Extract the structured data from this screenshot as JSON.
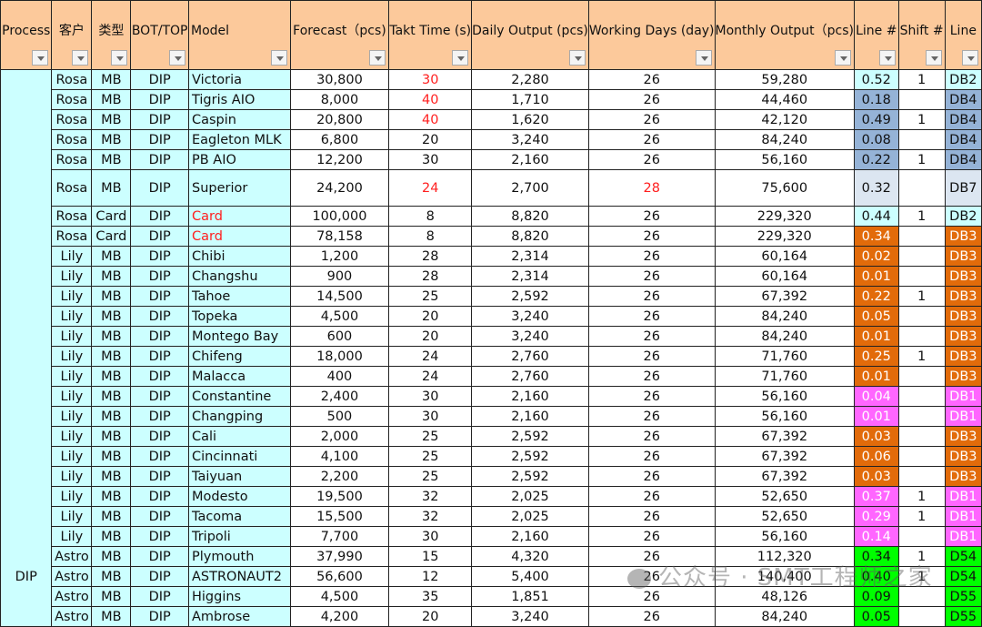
{
  "colors": {
    "header": "#fcc99b",
    "cyan": "#ccffff",
    "blue": "#95b3d7",
    "gray": "#dce6f1",
    "orange": "#e26b0a",
    "pink": "#ff66ff",
    "green": "#00ff00",
    "red_text": "#ff2020"
  },
  "headers": [
    "Process",
    "客户",
    "类型",
    "BOT/TOP",
    "Model",
    "Forecast（pcs)",
    "Takt Time (s)",
    "Daily Output (pcs)",
    "Working Days (day)",
    "Monthly Output（pcs)",
    "Line #",
    "Shift #",
    "Line"
  ],
  "process": "DIP",
  "rows": [
    {
      "customer": "Rosa",
      "type": "MB",
      "bt": "DIP",
      "model": "Victoria",
      "forecast": "30,800",
      "takt": "30",
      "daily": "2,280",
      "days": "26",
      "monthly": "59,280",
      "line_no": "0.52",
      "shift": "1",
      "line": "DB2",
      "color": "cyan",
      "red": [
        "takt"
      ]
    },
    {
      "customer": "Rosa",
      "type": "MB",
      "bt": "DIP",
      "model": "Tigris AIO",
      "forecast": "8,000",
      "takt": "40",
      "daily": "1,710",
      "days": "26",
      "monthly": "44,460",
      "line_no": "0.18",
      "shift": "",
      "line": "DB4",
      "color": "blue",
      "red": [
        "takt"
      ]
    },
    {
      "customer": "Rosa",
      "type": "MB",
      "bt": "DIP",
      "model": "Caspin",
      "forecast": "20,800",
      "takt": "40",
      "daily": "1,620",
      "days": "26",
      "monthly": "42,120",
      "line_no": "0.49",
      "shift": "1",
      "line": "DB4",
      "color": "blue",
      "red": [
        "takt"
      ]
    },
    {
      "customer": "Rosa",
      "type": "MB",
      "bt": "DIP",
      "model": "Eagleton MLK",
      "forecast": "6,800",
      "takt": "20",
      "daily": "3,240",
      "days": "26",
      "monthly": "84,240",
      "line_no": "0.08",
      "shift": "",
      "line": "DB4",
      "color": "blue",
      "red": []
    },
    {
      "customer": "Rosa",
      "type": "MB",
      "bt": "DIP",
      "model": "PB AIO",
      "forecast": "12,200",
      "takt": "30",
      "daily": "2,160",
      "days": "26",
      "monthly": "56,160",
      "line_no": "0.22",
      "shift": "1",
      "line": "DB4",
      "color": "blue",
      "red": []
    },
    {
      "customer": "Rosa",
      "type": "MB",
      "bt": "DIP",
      "model": "Superior",
      "forecast": "24,200",
      "takt": "24",
      "daily": "2,700",
      "days": "28",
      "monthly": "75,600",
      "line_no": "0.32",
      "shift": "",
      "line": "DB7",
      "color": "gray",
      "red": [
        "takt",
        "days"
      ],
      "tall": true
    },
    {
      "customer": "Rosa",
      "type": "Card",
      "bt": "DIP",
      "model": "Card",
      "forecast": "100,000",
      "takt": "8",
      "daily": "8,820",
      "days": "26",
      "monthly": "229,320",
      "line_no": "0.44",
      "shift": "1",
      "line": "DB2",
      "color": "cyan",
      "red": [
        "model"
      ]
    },
    {
      "customer": "Rosa",
      "type": "Card",
      "bt": "DIP",
      "model": "Card",
      "forecast": "78,158",
      "takt": "8",
      "daily": "8,820",
      "days": "26",
      "monthly": "229,320",
      "line_no": "0.34",
      "shift": "",
      "line": "DB3",
      "color": "orange",
      "red": [
        "model"
      ]
    },
    {
      "customer": "Lily",
      "type": "MB",
      "bt": "DIP",
      "model": "Chibi",
      "forecast": "1,200",
      "takt": "28",
      "daily": "2,314",
      "days": "26",
      "monthly": "60,164",
      "line_no": "0.02",
      "shift": "",
      "line": "DB3",
      "color": "orange",
      "red": []
    },
    {
      "customer": "Lily",
      "type": "MB",
      "bt": "DIP",
      "model": "Changshu",
      "forecast": "900",
      "takt": "28",
      "daily": "2,314",
      "days": "26",
      "monthly": "60,164",
      "line_no": "0.01",
      "shift": "",
      "line": "DB3",
      "color": "orange",
      "red": []
    },
    {
      "customer": "Lily",
      "type": "MB",
      "bt": "DIP",
      "model": "Tahoe",
      "forecast": "14,500",
      "takt": "25",
      "daily": "2,592",
      "days": "26",
      "monthly": "67,392",
      "line_no": "0.22",
      "shift": "1",
      "line": "DB3",
      "color": "orange",
      "red": []
    },
    {
      "customer": "Lily",
      "type": "MB",
      "bt": "DIP",
      "model": "Topeka",
      "forecast": "4,500",
      "takt": "20",
      "daily": "3,240",
      "days": "26",
      "monthly": "84,240",
      "line_no": "0.05",
      "shift": "",
      "line": "DB3",
      "color": "orange",
      "red": []
    },
    {
      "customer": "Lily",
      "type": "MB",
      "bt": "DIP",
      "model": "Montego Bay",
      "forecast": "600",
      "takt": "20",
      "daily": "3,240",
      "days": "26",
      "monthly": "84,240",
      "line_no": "0.01",
      "shift": "",
      "line": "DB3",
      "color": "orange",
      "red": []
    },
    {
      "customer": "Lily",
      "type": "MB",
      "bt": "DIP",
      "model": "Chifeng",
      "forecast": "18,000",
      "takt": "24",
      "daily": "2,760",
      "days": "26",
      "monthly": "71,760",
      "line_no": "0.25",
      "shift": "1",
      "line": "DB3",
      "color": "orange",
      "red": []
    },
    {
      "customer": "Lily",
      "type": "MB",
      "bt": "DIP",
      "model": "Malacca",
      "forecast": "400",
      "takt": "24",
      "daily": "2,760",
      "days": "26",
      "monthly": "71,760",
      "line_no": "0.01",
      "shift": "",
      "line": "DB3",
      "color": "orange",
      "red": []
    },
    {
      "customer": "Lily",
      "type": "MB",
      "bt": "DIP",
      "model": "Constantine",
      "forecast": "2,400",
      "takt": "30",
      "daily": "2,160",
      "days": "26",
      "monthly": "56,160",
      "line_no": "0.04",
      "shift": "",
      "line": "DB1",
      "color": "pink",
      "red": []
    },
    {
      "customer": "Lily",
      "type": "MB",
      "bt": "DIP",
      "model": "Changping",
      "forecast": "500",
      "takt": "30",
      "daily": "2,160",
      "days": "26",
      "monthly": "56,160",
      "line_no": "0.01",
      "shift": "",
      "line": "DB1",
      "color": "pink",
      "red": []
    },
    {
      "customer": "Lily",
      "type": "MB",
      "bt": "DIP",
      "model": "Cali",
      "forecast": "2,000",
      "takt": "25",
      "daily": "2,592",
      "days": "26",
      "monthly": "67,392",
      "line_no": "0.03",
      "shift": "",
      "line": "DB3",
      "color": "orange",
      "red": []
    },
    {
      "customer": "Lily",
      "type": "MB",
      "bt": "DIP",
      "model": "Cincinnati",
      "forecast": "4,100",
      "takt": "25",
      "daily": "2,592",
      "days": "26",
      "monthly": "67,392",
      "line_no": "0.06",
      "shift": "",
      "line": "DB3",
      "color": "orange",
      "red": []
    },
    {
      "customer": "Lily",
      "type": "MB",
      "bt": "DIP",
      "model": "Taiyuan",
      "forecast": "2,200",
      "takt": "25",
      "daily": "2,592",
      "days": "26",
      "monthly": "67,392",
      "line_no": "0.03",
      "shift": "",
      "line": "DB3",
      "color": "orange",
      "red": []
    },
    {
      "customer": "Lily",
      "type": "MB",
      "bt": "DIP",
      "model": "Modesto",
      "forecast": "19,500",
      "takt": "32",
      "daily": "2,025",
      "days": "26",
      "monthly": "52,650",
      "line_no": "0.37",
      "shift": "1",
      "line": "DB1",
      "color": "pink",
      "red": []
    },
    {
      "customer": "Lily",
      "type": "MB",
      "bt": "DIP",
      "model": "Tacoma",
      "forecast": "15,500",
      "takt": "32",
      "daily": "2,025",
      "days": "26",
      "monthly": "52,650",
      "line_no": "0.29",
      "shift": "1",
      "line": "DB1",
      "color": "pink",
      "red": []
    },
    {
      "customer": "Lily",
      "type": "MB",
      "bt": "DIP",
      "model": "Tripoli",
      "forecast": "7,700",
      "takt": "30",
      "daily": "2,160",
      "days": "26",
      "monthly": "56,160",
      "line_no": "0.14",
      "shift": "",
      "line": "DB1",
      "color": "pink",
      "red": []
    },
    {
      "customer": "Astro",
      "type": "MB",
      "bt": "DIP",
      "model": "Plymouth",
      "forecast": "37,990",
      "takt": "15",
      "daily": "4,320",
      "days": "26",
      "monthly": "112,320",
      "line_no": "0.34",
      "shift": "1",
      "line": "D54",
      "color": "green",
      "red": []
    },
    {
      "customer": "Astro",
      "type": "MB",
      "bt": "DIP",
      "model": "ASTRONAUT2",
      "forecast": "56,600",
      "takt": "12",
      "daily": "5,400",
      "days": "26",
      "monthly": "140,400",
      "line_no": "0.40",
      "shift": "1",
      "line": "D54",
      "color": "green",
      "red": []
    },
    {
      "customer": "Astro",
      "type": "MB",
      "bt": "DIP",
      "model": "Higgins",
      "forecast": "4,500",
      "takt": "35",
      "daily": "1,851",
      "days": "26",
      "monthly": "48,126",
      "line_no": "0.09",
      "shift": "",
      "line": "D55",
      "color": "green",
      "red": []
    },
    {
      "customer": "Astro",
      "type": "MB",
      "bt": "DIP",
      "model": "Ambrose",
      "forecast": "4,200",
      "takt": "20",
      "daily": "3,240",
      "days": "26",
      "monthly": "84,240",
      "line_no": "0.05",
      "shift": "",
      "line": "D55",
      "color": "green",
      "red": []
    }
  ],
  "watermark": "公众号 · SMT工程师之家"
}
